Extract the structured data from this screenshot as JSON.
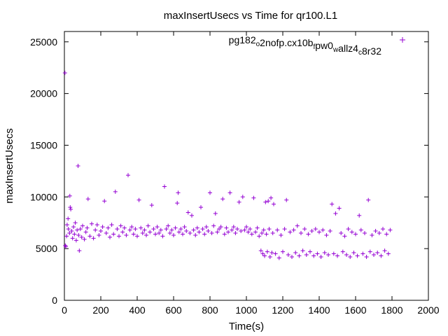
{
  "chart_data": {
    "type": "scatter",
    "title": "maxInsertUsecs vs Time for qr100.L1",
    "xlabel": "Time(s)",
    "ylabel": "maxInsertUsecs",
    "xlim": [
      0,
      2000
    ],
    "ylim": [
      0,
      26000
    ],
    "xticks": [
      0,
      200,
      400,
      600,
      800,
      1000,
      1200,
      1400,
      1600,
      1800,
      2000
    ],
    "yticks": [
      0,
      5000,
      10000,
      15000,
      20000,
      25000
    ],
    "xtick_labels": [
      "0",
      "200",
      "400",
      "600",
      "800",
      "1000",
      "1200",
      "1400",
      "1600",
      "1800",
      "2000"
    ],
    "ytick_labels": [
      "0",
      "5000",
      "10000",
      "15000",
      "20000",
      "25000"
    ],
    "grid": false,
    "legend_position": "top-right",
    "series": [
      {
        "name": "pg182_o2nofp.cx10b_fpw0_wallz4_c8r32",
        "legend_label": {
          "parts": [
            {
              "text": "pg182",
              "sub": false
            },
            {
              "text": "o",
              "sub": true
            },
            {
              "text": "2nofp.cx10b",
              "sub": false
            },
            {
              "text": "f",
              "sub": true
            },
            {
              "text": "pw0",
              "sub": false
            },
            {
              "text": "w",
              "sub": true
            },
            {
              "text": "allz4",
              "sub": false
            },
            {
              "text": "c",
              "sub": true
            },
            {
              "text": "8r32",
              "sub": false
            }
          ]
        },
        "color": "#9400d3",
        "marker": "plus",
        "points": [
          [
            3,
            22000
          ],
          [
            5,
            5300
          ],
          [
            8,
            5200
          ],
          [
            12,
            6200
          ],
          [
            15,
            7300
          ],
          [
            20,
            7900
          ],
          [
            22,
            6900
          ],
          [
            28,
            6500
          ],
          [
            30,
            10100
          ],
          [
            32,
            9000
          ],
          [
            35,
            8800
          ],
          [
            40,
            6700
          ],
          [
            45,
            6000
          ],
          [
            50,
            7100
          ],
          [
            55,
            6400
          ],
          [
            60,
            7500
          ],
          [
            65,
            5800
          ],
          [
            70,
            6800
          ],
          [
            75,
            13000
          ],
          [
            78,
            6300
          ],
          [
            82,
            4800
          ],
          [
            88,
            6900
          ],
          [
            95,
            6100
          ],
          [
            100,
            7200
          ],
          [
            110,
            5900
          ],
          [
            118,
            6600
          ],
          [
            125,
            7000
          ],
          [
            130,
            9800
          ],
          [
            140,
            6200
          ],
          [
            150,
            7400
          ],
          [
            160,
            6000
          ],
          [
            170,
            6800
          ],
          [
            180,
            7300
          ],
          [
            190,
            6300
          ],
          [
            200,
            6700
          ],
          [
            210,
            7100
          ],
          [
            220,
            9600
          ],
          [
            230,
            6500
          ],
          [
            240,
            7000
          ],
          [
            250,
            6100
          ],
          [
            260,
            7300
          ],
          [
            270,
            6400
          ],
          [
            280,
            10500
          ],
          [
            290,
            6900
          ],
          [
            300,
            6200
          ],
          [
            310,
            7200
          ],
          [
            320,
            6600
          ],
          [
            330,
            7000
          ],
          [
            340,
            6300
          ],
          [
            350,
            12100
          ],
          [
            360,
            6800
          ],
          [
            370,
            7100
          ],
          [
            380,
            6400
          ],
          [
            390,
            6900
          ],
          [
            400,
            6200
          ],
          [
            410,
            9700
          ],
          [
            420,
            7000
          ],
          [
            430,
            6500
          ],
          [
            440,
            6800
          ],
          [
            450,
            6300
          ],
          [
            460,
            7200
          ],
          [
            470,
            6600
          ],
          [
            480,
            9200
          ],
          [
            490,
            6900
          ],
          [
            500,
            6400
          ],
          [
            510,
            7100
          ],
          [
            520,
            6500
          ],
          [
            530,
            6800
          ],
          [
            540,
            6200
          ],
          [
            550,
            11000
          ],
          [
            560,
            6900
          ],
          [
            570,
            7200
          ],
          [
            580,
            6500
          ],
          [
            590,
            6800
          ],
          [
            600,
            6300
          ],
          [
            610,
            7000
          ],
          [
            620,
            9400
          ],
          [
            625,
            10400
          ],
          [
            630,
            6600
          ],
          [
            640,
            6900
          ],
          [
            650,
            6400
          ],
          [
            660,
            7100
          ],
          [
            670,
            6700
          ],
          [
            680,
            8500
          ],
          [
            690,
            6500
          ],
          [
            700,
            8200
          ],
          [
            710,
            6800
          ],
          [
            720,
            6300
          ],
          [
            730,
            7000
          ],
          [
            740,
            6600
          ],
          [
            750,
            9000
          ],
          [
            760,
            6900
          ],
          [
            770,
            6400
          ],
          [
            780,
            7100
          ],
          [
            790,
            6700
          ],
          [
            800,
            10400
          ],
          [
            810,
            6500
          ],
          [
            820,
            7200
          ],
          [
            830,
            8400
          ],
          [
            840,
            6600
          ],
          [
            850,
            6900
          ],
          [
            860,
            7100
          ],
          [
            870,
            9800
          ],
          [
            880,
            6400
          ],
          [
            890,
            7000
          ],
          [
            900,
            6600
          ],
          [
            910,
            10400
          ],
          [
            920,
            6800
          ],
          [
            930,
            7100
          ],
          [
            940,
            6500
          ],
          [
            950,
            6900
          ],
          [
            960,
            9500
          ],
          [
            970,
            6700
          ],
          [
            980,
            10000
          ],
          [
            990,
            6800
          ],
          [
            1000,
            7100
          ],
          [
            1010,
            6600
          ],
          [
            1020,
            6900
          ],
          [
            1030,
            6400
          ],
          [
            1040,
            9900
          ],
          [
            1050,
            6600
          ],
          [
            1060,
            7000
          ],
          [
            1070,
            6200
          ],
          [
            1080,
            4800
          ],
          [
            1085,
            6500
          ],
          [
            1090,
            4500
          ],
          [
            1095,
            6800
          ],
          [
            1100,
            4300
          ],
          [
            1105,
            9500
          ],
          [
            1110,
            6400
          ],
          [
            1115,
            4700
          ],
          [
            1120,
            9600
          ],
          [
            1125,
            6900
          ],
          [
            1130,
            4200
          ],
          [
            1135,
            9900
          ],
          [
            1140,
            4600
          ],
          [
            1145,
            6500
          ],
          [
            1150,
            9300
          ],
          [
            1160,
            4500
          ],
          [
            1170,
            6800
          ],
          [
            1180,
            4100
          ],
          [
            1190,
            6300
          ],
          [
            1200,
            4700
          ],
          [
            1210,
            6900
          ],
          [
            1220,
            9700
          ],
          [
            1230,
            4400
          ],
          [
            1240,
            6600
          ],
          [
            1250,
            4200
          ],
          [
            1260,
            6800
          ],
          [
            1270,
            4600
          ],
          [
            1280,
            7200
          ],
          [
            1290,
            4300
          ],
          [
            1300,
            6500
          ],
          [
            1310,
            4800
          ],
          [
            1320,
            6900
          ],
          [
            1330,
            4400
          ],
          [
            1340,
            6400
          ],
          [
            1350,
            4700
          ],
          [
            1360,
            6700
          ],
          [
            1370,
            4300
          ],
          [
            1380,
            6900
          ],
          [
            1390,
            4500
          ],
          [
            1400,
            6600
          ],
          [
            1410,
            4200
          ],
          [
            1420,
            6800
          ],
          [
            1430,
            4600
          ],
          [
            1440,
            6300
          ],
          [
            1450,
            4400
          ],
          [
            1460,
            6700
          ],
          [
            1470,
            9300
          ],
          [
            1480,
            4500
          ],
          [
            1490,
            8400
          ],
          [
            1500,
            4300
          ],
          [
            1510,
            8900
          ],
          [
            1520,
            6500
          ],
          [
            1530,
            4700
          ],
          [
            1540,
            6200
          ],
          [
            1550,
            4400
          ],
          [
            1560,
            6900
          ],
          [
            1570,
            4200
          ],
          [
            1580,
            6600
          ],
          [
            1590,
            4600
          ],
          [
            1600,
            6400
          ],
          [
            1610,
            4300
          ],
          [
            1620,
            8200
          ],
          [
            1630,
            6800
          ],
          [
            1640,
            4500
          ],
          [
            1650,
            6500
          ],
          [
            1660,
            4200
          ],
          [
            1670,
            9700
          ],
          [
            1680,
            4700
          ],
          [
            1690,
            6300
          ],
          [
            1700,
            4400
          ],
          [
            1710,
            6700
          ],
          [
            1720,
            4600
          ],
          [
            1730,
            6500
          ],
          [
            1740,
            4300
          ],
          [
            1750,
            6900
          ],
          [
            1760,
            4800
          ],
          [
            1770,
            6400
          ],
          [
            1780,
            4500
          ],
          [
            1790,
            6800
          ]
        ]
      }
    ]
  }
}
